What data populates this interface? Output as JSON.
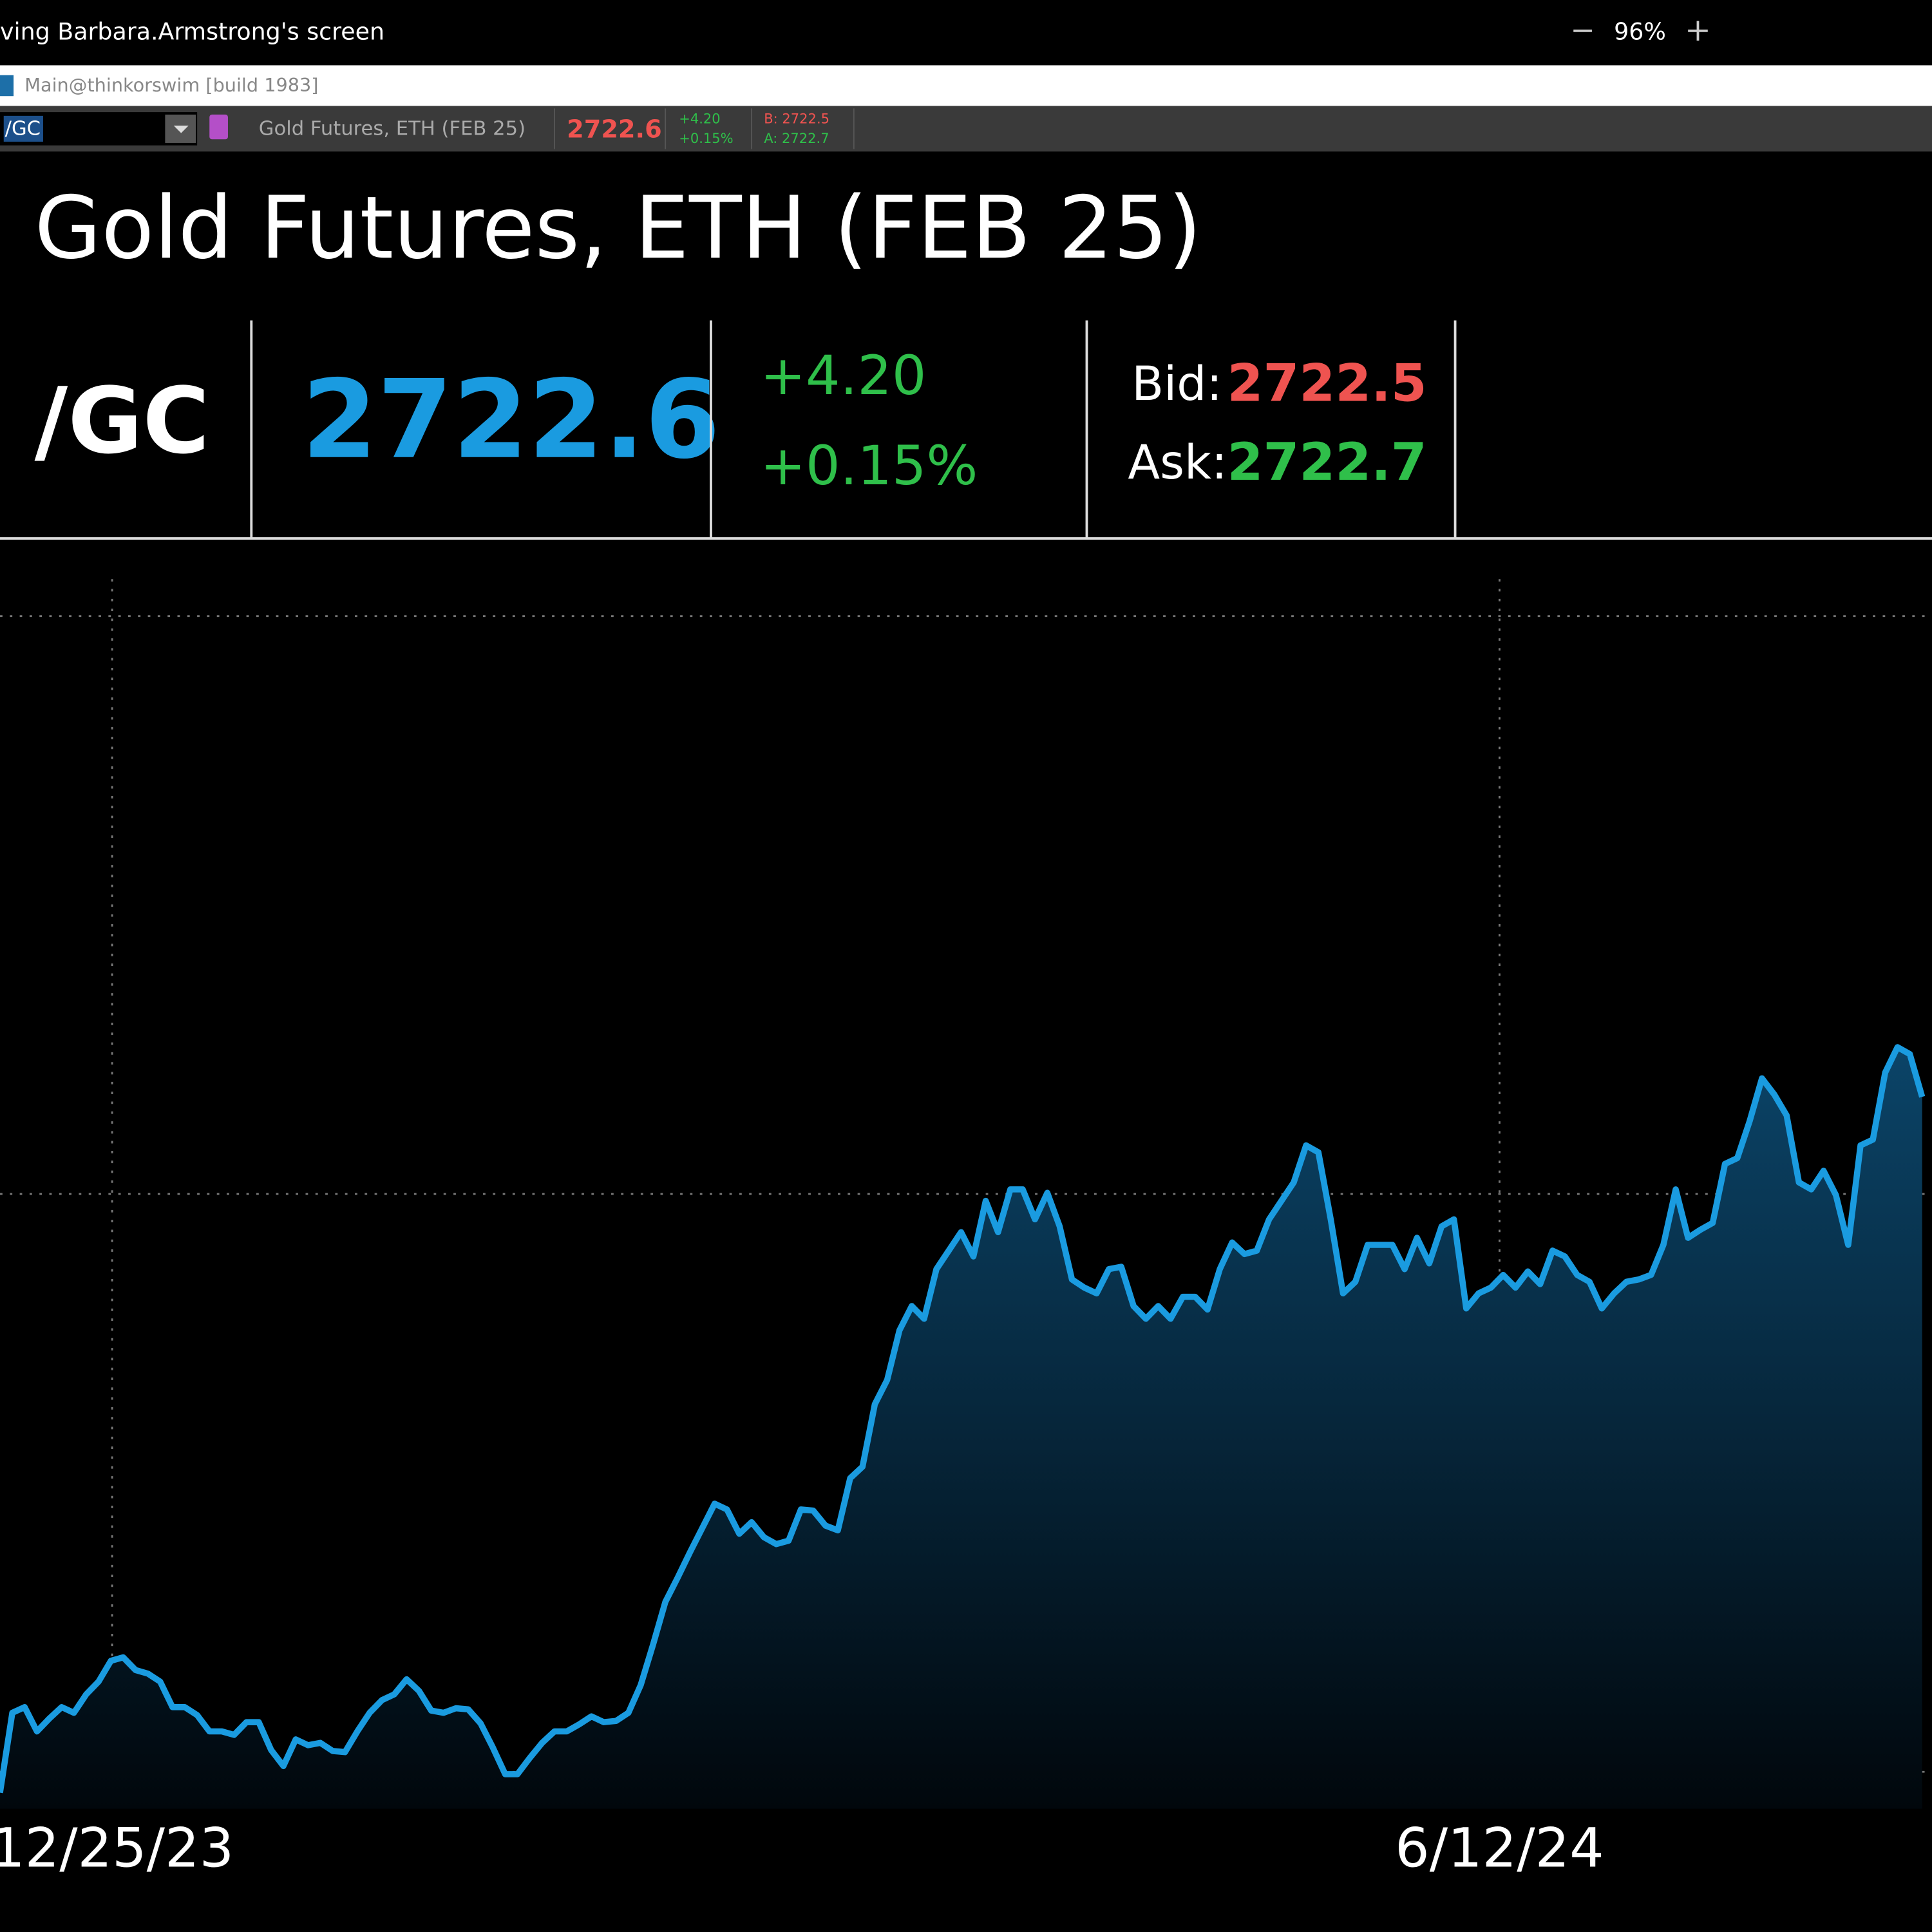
{
  "screen_share_bar": {
    "text": "ving Barbara.Armstrong's screen",
    "zoom": "96%"
  },
  "window": {
    "title": "Main@thinkorswim [build 1983]"
  },
  "toolbar": {
    "symbol": "/GC",
    "description": "Gold Futures, ETH (FEB 25)",
    "last": "2722.6",
    "change": "+4.20",
    "change_pct": "+0.15%",
    "bid": "B: 2722.5",
    "ask": "A: 2722.7"
  },
  "quote": {
    "title": "Gold Futures, ETH (FEB 25)",
    "symbol": "/GC",
    "last": "2722.6",
    "change": "+4.20",
    "change_pct": "+0.15%",
    "bid_label": "Bid:",
    "bid": "2722.5",
    "ask_label": "Ask:",
    "ask": "2722.7"
  },
  "chart_data": {
    "type": "area",
    "color": "#1a9be0",
    "grid": true,
    "xlim": [
      0,
      156.8
    ],
    "xticks": [
      {
        "value": 9.1,
        "label": "12/25/23"
      },
      {
        "value": 121.7,
        "label": "6/12/24"
      }
    ],
    "ylim": [
      1968,
      3064
    ],
    "yticks": [
      2000,
      2500,
      3000
    ],
    "values": [
      1982,
      2051,
      2056,
      2035,
      2046,
      2056,
      2051,
      2067,
      2078,
      2096,
      2099,
      2088,
      2085,
      2078,
      2056,
      2056,
      2049,
      2035,
      2035,
      2032,
      2043,
      2043,
      2019,
      2005,
      2028,
      2023,
      2025,
      2018,
      2017,
      2035,
      2051,
      2062,
      2067,
      2080,
      2070,
      2053,
      2051,
      2055,
      2054,
      2042,
      2021,
      1998,
      1998,
      2012,
      2025,
      2035,
      2035,
      2041,
      2048,
      2043,
      2044,
      2051,
      2075,
      2110,
      2147,
      2168,
      2190,
      2211,
      2232,
      2227,
      2206,
      2216,
      2203,
      2197,
      2200,
      2227,
      2226,
      2213,
      2209,
      2254,
      2264,
      2318,
      2339,
      2382,
      2403,
      2392,
      2435,
      2451,
      2467,
      2446,
      2494,
      2467,
      2504,
      2504,
      2478,
      2501,
      2472,
      2426,
      2419,
      2414,
      2435,
      2437,
      2403,
      2392,
      2403,
      2392,
      2411,
      2411,
      2400,
      2435,
      2458,
      2448,
      2451,
      2478,
      2494,
      2510,
      2542,
      2536,
      2478,
      2414,
      2424,
      2456,
      2456,
      2456,
      2435,
      2462,
      2440,
      2472,
      2478,
      2401,
      2414,
      2419,
      2430,
      2419,
      2433,
      2422,
      2451,
      2446,
      2430,
      2424,
      2401,
      2414,
      2424,
      2426,
      2430,
      2456,
      2504,
      2462,
      2469,
      2475,
      2526,
      2531,
      2563,
      2600,
      2586,
      2568,
      2510,
      2504,
      2520,
      2499,
      2456,
      2542,
      2547,
      2605,
      2627,
      2621,
      2584
    ]
  }
}
